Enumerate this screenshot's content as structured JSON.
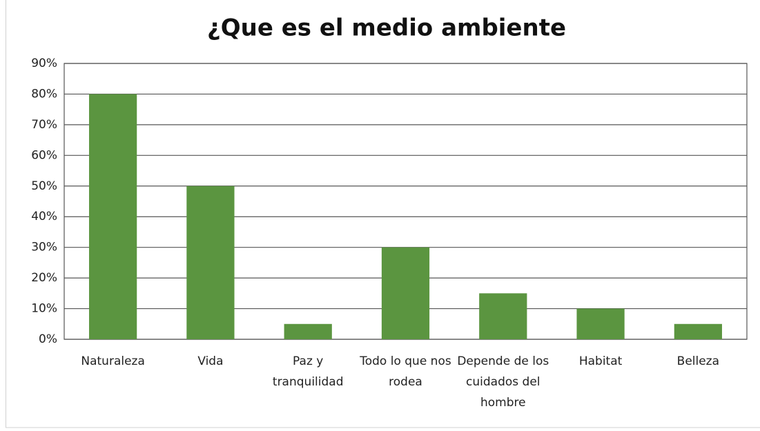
{
  "chart_data": {
    "type": "bar",
    "title": "¿Que es el medio ambiente",
    "categories": [
      "Naturaleza",
      "Vida",
      "Paz y tranquilidad",
      "Todo lo que nos rodea",
      "Depende de los cuidados del hombre",
      "Habitat",
      "Belleza"
    ],
    "values": [
      80,
      50,
      5,
      30,
      15,
      10,
      5
    ],
    "color": "#5b9540",
    "ylim": [
      0,
      90
    ],
    "yticks": [
      {
        "value": 0,
        "label": "0%"
      },
      {
        "value": 10,
        "label": "10%"
      },
      {
        "value": 20,
        "label": "20%"
      },
      {
        "value": 30,
        "label": "30%"
      },
      {
        "value": 40,
        "label": "40%"
      },
      {
        "value": 50,
        "label": "50%"
      },
      {
        "value": 60,
        "label": "60%"
      },
      {
        "value": 70,
        "label": "70%"
      },
      {
        "value": 80,
        "label": "80%"
      },
      {
        "value": 90,
        "label": "90%"
      }
    ],
    "grid": true
  }
}
